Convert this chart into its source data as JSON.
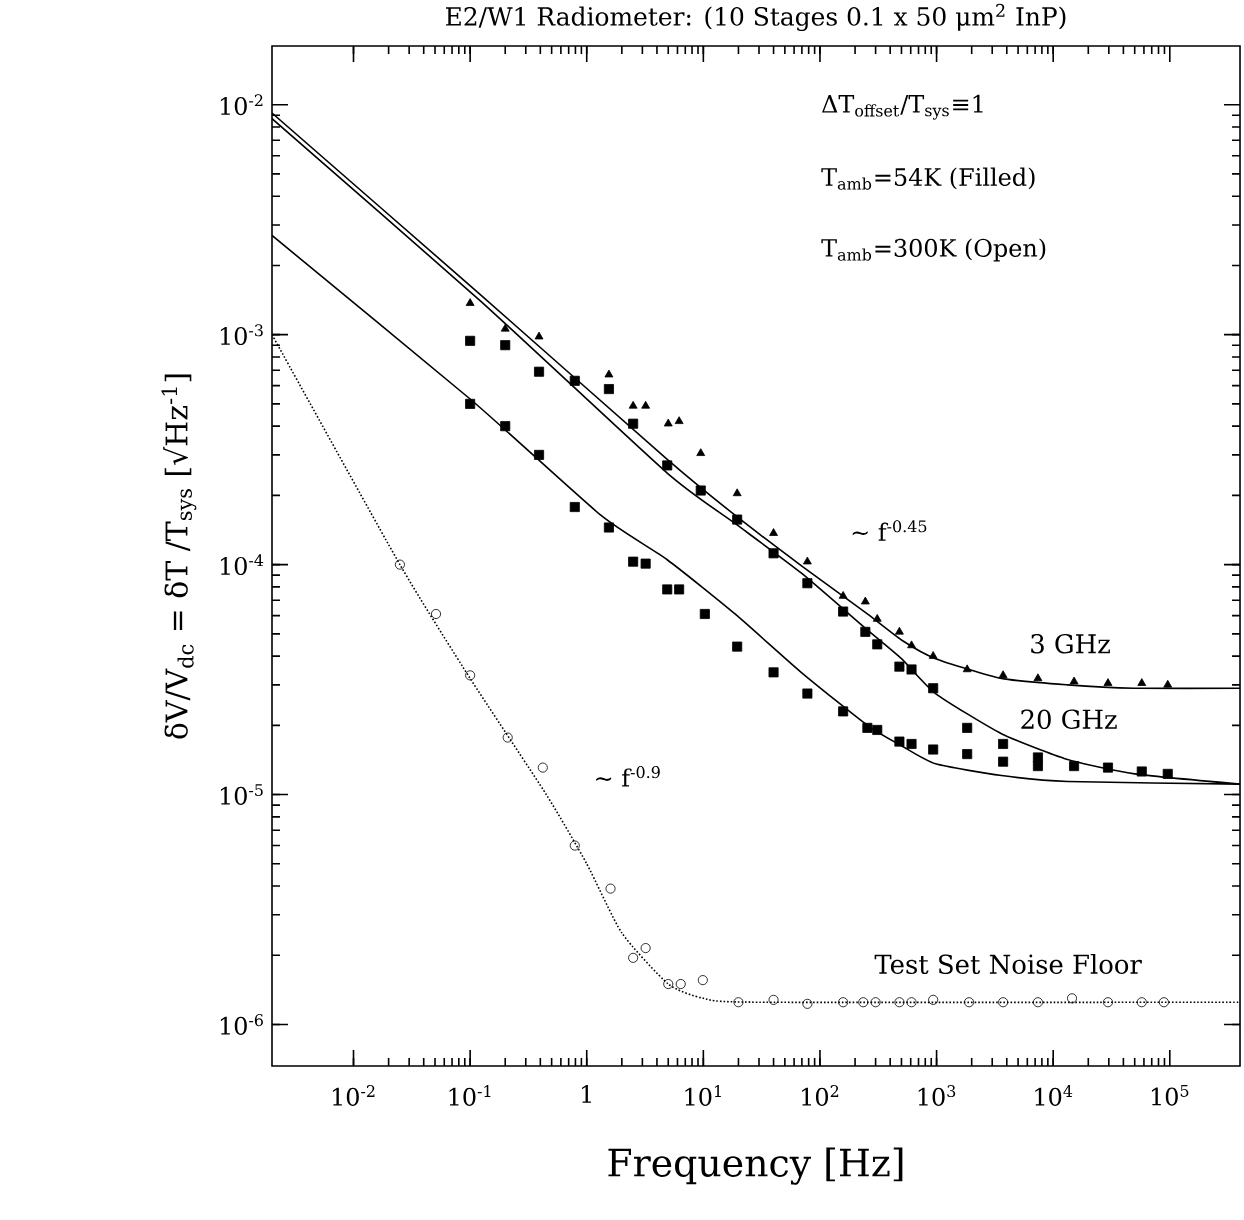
{
  "chart_data": {
    "type": "scatter",
    "title": "E2/W1 Radiometer: (10 Stages 0.1 x 50 μm$^{2}$ InP)",
    "xlabel": "Frequency [Hz]",
    "ylabel": "δV/V$_{dc}$ = δT /T$_{sys}$ [√Hz$^{-1}$]",
    "log": "xy",
    "xlim": [
      0.002,
      400000
    ],
    "ylim": [
      6.6e-07,
      0.018
    ],
    "xticks": [
      {
        "value": 0.01,
        "label": "10$^{-2}$"
      },
      {
        "value": 0.1,
        "label": "10$^{-1}$"
      },
      1,
      {
        "value": 10,
        "label": "10$^{1}$"
      },
      {
        "value": 100,
        "label": "10$^{2}$"
      },
      {
        "value": 1000,
        "label": "10$^{3}$"
      },
      {
        "value": 10000,
        "label": "10$^{4}$"
      },
      {
        "value": 100000,
        "label": "10$^{5}$"
      }
    ],
    "yticks": [
      {
        "value": 1e-06,
        "label": "10$^{-6}$"
      },
      {
        "value": 1e-05,
        "label": "10$^{-5}$"
      },
      {
        "value": 0.0001,
        "label": "10$^{-4}$"
      },
      {
        "value": 0.001,
        "label": "10$^{-3}$"
      },
      {
        "value": 0.01,
        "label": "10$^{-2}$"
      }
    ],
    "annotations": [
      "ΔT$_{offset}$/T$_{sys}$≡1",
      "T$_{amb}$=54K    (Filled)",
      "T$_{amb}$=300K   (Open)",
      "~ f$^{-0.45}$",
      "~ f$^{-0.9}$"
    ],
    "series": [
      {
        "marker": "triangle",
        "color": "#000000",
        "x": [
          0.1,
          0.2,
          0.39,
          1.55,
          2.5,
          3.2,
          5.0,
          6.2,
          9.5,
          19.5,
          40,
          78,
          158,
          245,
          310,
          480,
          610,
          935,
          1830,
          3720,
          7400,
          15100,
          29500,
          57500,
          96000
        ],
        "values": [
          0.00137,
          0.00106,
          0.00098,
          0.00067,
          0.00049,
          0.00049,
          0.00041,
          0.00042,
          0.000305,
          0.000204,
          0.000137,
          0.000103,
          7.3e-05,
          6.9e-05,
          5.8e-05,
          5.1e-05,
          4.45e-05,
          4e-05,
          3.5e-05,
          3.3e-05,
          3.2e-05,
          3.1e-05,
          3.05e-05,
          3.05e-05,
          3e-05
        ]
      },
      {
        "marker": "square",
        "color": "#000000",
        "x": [
          0.1,
          0.2,
          0.39,
          0.79,
          1.55,
          2.5,
          4.9,
          9.5,
          19.5,
          40,
          78,
          158,
          245,
          310,
          480,
          610,
          935,
          1830,
          3720,
          7400,
          15100,
          29500,
          57500,
          96000
        ],
        "values": [
          0.00094,
          0.0009,
          0.00069,
          0.00063,
          0.00058,
          0.00041,
          0.00027,
          0.00021,
          0.000157,
          0.000112,
          8.3e-05,
          6.25e-05,
          5.1e-05,
          4.5e-05,
          3.6e-05,
          3.5e-05,
          2.9e-05,
          1.95e-05,
          1.66e-05,
          1.45e-05,
          1.33e-05,
          1.31e-05,
          1.26e-05,
          1.23e-05
        ]
      },
      {
        "marker": "square",
        "color": "#000000",
        "x": [
          0.1,
          0.2,
          0.39,
          0.79,
          1.55,
          2.5,
          3.2,
          4.9,
          6.2,
          10.3,
          19.5,
          40,
          78,
          158,
          255,
          310,
          480,
          610,
          935,
          1830,
          3720,
          7400
        ],
        "values": [
          0.0005,
          0.0004,
          0.0003,
          0.000178,
          0.000145,
          0.000103,
          0.000101,
          7.8e-05,
          7.8e-05,
          6.1e-05,
          4.4e-05,
          3.4e-05,
          2.75e-05,
          2.3e-05,
          1.95e-05,
          1.91e-05,
          1.7e-05,
          1.66e-05,
          1.57e-05,
          1.5e-05,
          1.39e-05,
          1.33e-05
        ]
      },
      {
        "marker": "circle",
        "color": "#000000",
        "x": [
          0.025,
          0.051,
          0.1,
          0.21,
          0.42,
          0.79,
          1.6,
          2.5,
          3.2,
          5.0,
          6.4,
          9.9,
          20,
          40,
          78,
          158,
          235,
          300,
          480,
          610,
          935,
          1900,
          3720,
          7400,
          14500,
          29500,
          57500,
          89000
        ],
        "values": [
          0.0001,
          6.1e-05,
          3.3e-05,
          1.77e-05,
          1.31e-05,
          6e-06,
          3.9e-06,
          1.95e-06,
          2.15e-06,
          1.5e-06,
          1.5e-06,
          1.56e-06,
          1.25e-06,
          1.28e-06,
          1.23e-06,
          1.25e-06,
          1.25e-06,
          1.25e-06,
          1.25e-06,
          1.25e-06,
          1.28e-06,
          1.25e-06,
          1.25e-06,
          1.25e-06,
          1.3e-06,
          1.25e-06,
          1.25e-06,
          1.25e-06
        ]
      },
      {
        "type": "line",
        "name": "3 GHz",
        "line_style": "solid",
        "color": "#000000",
        "x": [
          0.002,
          0.123,
          4.9,
          18.7,
          69,
          255,
          500,
          980,
          3600,
          13300,
          49000,
          400000
        ],
        "values": [
          0.0092,
          0.00149,
          0.000287,
          0.000164,
          9.9e-05,
          6.1e-05,
          4.7e-05,
          3.9e-05,
          3.2e-05,
          3e-05,
          2.9e-05,
          2.9e-05
        ]
      },
      {
        "type": "line",
        "name": "20 GHz",
        "line_style": "solid",
        "color": "#000000",
        "x": [
          0.002,
          0.123,
          4.9,
          18.7,
          69,
          255,
          500,
          980,
          3600,
          13300,
          50000,
          400000
        ],
        "values": [
          0.0087,
          0.0014,
          0.00025,
          0.000151,
          9.2e-05,
          5.2e-05,
          3.9e-05,
          2.75e-05,
          1.84e-05,
          1.42e-05,
          1.23e-05,
          1.11e-05
        ]
      },
      {
        "type": "line",
        "line_style": "solid",
        "color": "#000000",
        "x": [
          0.002,
          0.1,
          1.32,
          4.9,
          18.7,
          69,
          255,
          500,
          980,
          3600,
          13300,
          400000
        ],
        "values": [
          0.0027,
          0.000525,
          0.000164,
          0.000105,
          6.1e-05,
          3.4e-05,
          2e-05,
          1.63e-05,
          1.36e-05,
          1.21e-05,
          1.14e-05,
          1.11e-05
        ]
      },
      {
        "type": "line",
        "name": "Test Set Noise Floor",
        "line_style": "dotted",
        "color": "#000000",
        "x": [
          0.002,
          0.025,
          0.1,
          0.45,
          1,
          2,
          5,
          10,
          30,
          400000
        ],
        "values": [
          0.001,
          0.0001,
          3.2e-05,
          1e-05,
          5e-06,
          2.5e-06,
          1.5e-06,
          1.3e-06,
          1.25e-06,
          1.25e-06
        ]
      }
    ]
  }
}
